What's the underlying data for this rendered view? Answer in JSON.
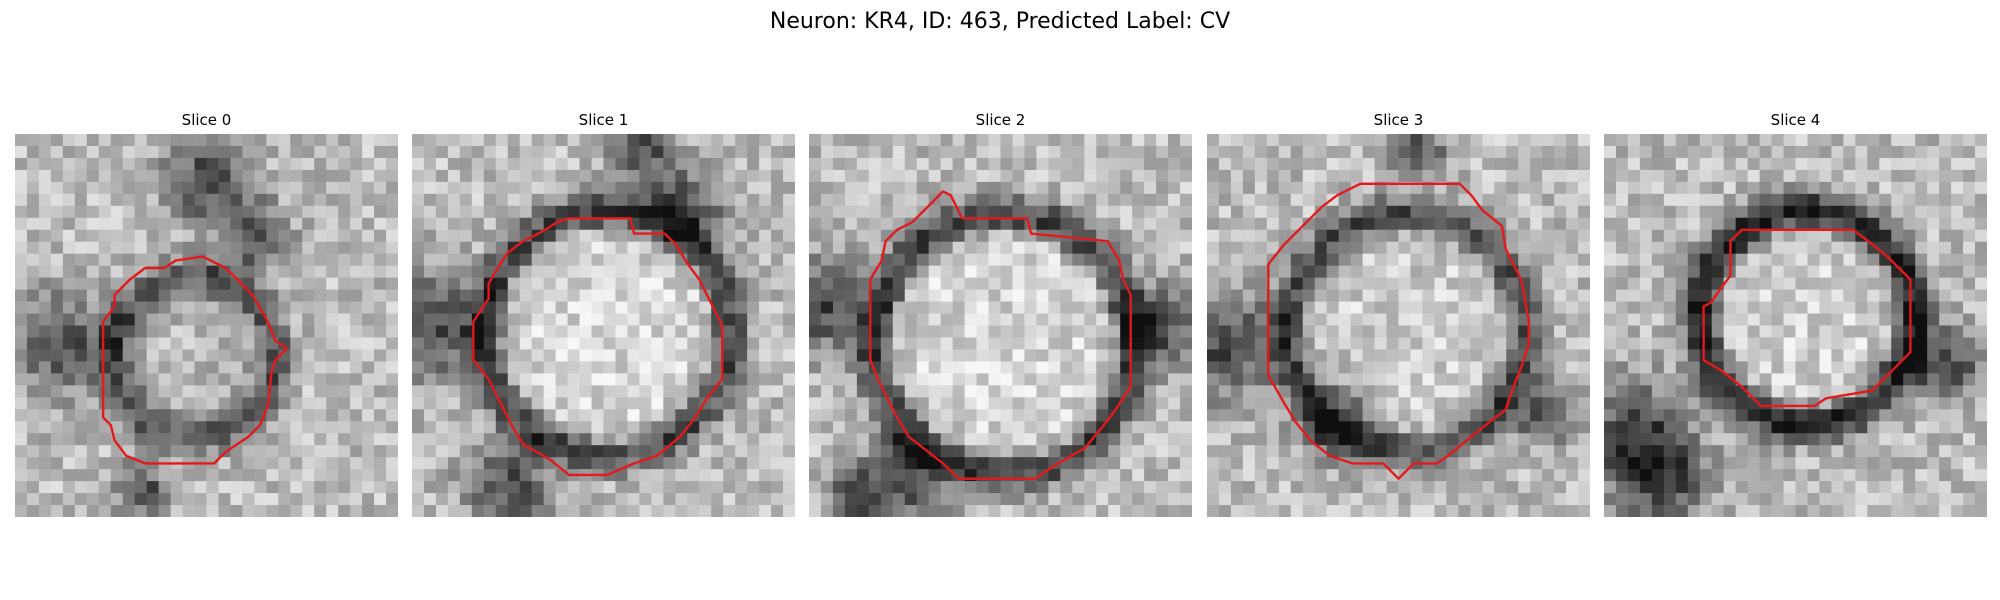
{
  "figure": {
    "title": "Neuron: KR4, ID: 463, Predicted Label: CV"
  },
  "panels": [
    {
      "title": "Slice 0",
      "contour_color": "#e31a1c",
      "image": {
        "seed": 11,
        "center": [
          0.47,
          0.58
        ],
        "ring_radius": 0.21,
        "ring_dark": 0.32,
        "interior_brightness": 0.72,
        "extra_dark": [
          [
            0.63,
            0.27,
            0.06
          ],
          [
            0.12,
            0.55,
            0.09
          ],
          [
            0.5,
            0.12,
            0.08
          ],
          [
            0.33,
            0.93,
            0.05
          ]
        ]
      },
      "contour": [
        [
          0.42,
          0.33
        ],
        [
          0.49,
          0.32
        ],
        [
          0.55,
          0.35
        ],
        [
          0.62,
          0.42
        ],
        [
          0.66,
          0.49
        ],
        [
          0.68,
          0.54
        ],
        [
          0.71,
          0.56
        ],
        [
          0.68,
          0.59
        ],
        [
          0.67,
          0.62
        ],
        [
          0.66,
          0.71
        ],
        [
          0.64,
          0.76
        ],
        [
          0.61,
          0.79
        ],
        [
          0.55,
          0.83
        ],
        [
          0.52,
          0.86
        ],
        [
          0.34,
          0.86
        ],
        [
          0.29,
          0.84
        ],
        [
          0.26,
          0.8
        ],
        [
          0.25,
          0.76
        ],
        [
          0.23,
          0.74
        ],
        [
          0.23,
          0.49
        ],
        [
          0.26,
          0.45
        ],
        [
          0.26,
          0.42
        ],
        [
          0.3,
          0.38
        ],
        [
          0.34,
          0.35
        ],
        [
          0.39,
          0.35
        ]
      ]
    },
    {
      "title": "Slice 1",
      "contour_color": "#e31a1c",
      "image": {
        "seed": 23,
        "center": [
          0.51,
          0.52
        ],
        "ring_radius": 0.32,
        "ring_dark": 0.28,
        "interior_brightness": 0.85,
        "extra_dark": [
          [
            0.05,
            0.5,
            0.1
          ],
          [
            0.72,
            0.2,
            0.07
          ],
          [
            0.6,
            0.05,
            0.06
          ],
          [
            0.25,
            0.92,
            0.08
          ]
        ]
      },
      "contour": [
        [
          0.33,
          0.26
        ],
        [
          0.38,
          0.23
        ],
        [
          0.41,
          0.22
        ],
        [
          0.57,
          0.22
        ],
        [
          0.58,
          0.26
        ],
        [
          0.66,
          0.26
        ],
        [
          0.69,
          0.29
        ],
        [
          0.72,
          0.34
        ],
        [
          0.75,
          0.38
        ],
        [
          0.78,
          0.44
        ],
        [
          0.81,
          0.5
        ],
        [
          0.81,
          0.64
        ],
        [
          0.77,
          0.69
        ],
        [
          0.74,
          0.74
        ],
        [
          0.7,
          0.79
        ],
        [
          0.64,
          0.84
        ],
        [
          0.58,
          0.86
        ],
        [
          0.51,
          0.89
        ],
        [
          0.41,
          0.89
        ],
        [
          0.36,
          0.85
        ],
        [
          0.29,
          0.81
        ],
        [
          0.26,
          0.76
        ],
        [
          0.2,
          0.64
        ],
        [
          0.16,
          0.59
        ],
        [
          0.16,
          0.49
        ],
        [
          0.2,
          0.43
        ],
        [
          0.2,
          0.39
        ],
        [
          0.23,
          0.34
        ],
        [
          0.25,
          0.31
        ],
        [
          0.29,
          0.28
        ]
      ]
    },
    {
      "title": "Slice 2",
      "contour_color": "#e31a1c",
      "image": {
        "seed": 37,
        "center": [
          0.51,
          0.55
        ],
        "ring_radius": 0.34,
        "ring_dark": 0.25,
        "interior_brightness": 0.84,
        "extra_dark": [
          [
            0.04,
            0.45,
            0.09
          ],
          [
            0.25,
            0.9,
            0.08
          ],
          [
            0.92,
            0.5,
            0.07
          ],
          [
            0.12,
            0.95,
            0.05
          ]
        ]
      },
      "contour": [
        [
          0.32,
          0.18
        ],
        [
          0.35,
          0.15
        ],
        [
          0.37,
          0.16
        ],
        [
          0.4,
          0.22
        ],
        [
          0.57,
          0.22
        ],
        [
          0.58,
          0.26
        ],
        [
          0.78,
          0.28
        ],
        [
          0.81,
          0.33
        ],
        [
          0.82,
          0.38
        ],
        [
          0.84,
          0.42
        ],
        [
          0.84,
          0.66
        ],
        [
          0.8,
          0.72
        ],
        [
          0.77,
          0.76
        ],
        [
          0.72,
          0.82
        ],
        [
          0.65,
          0.86
        ],
        [
          0.59,
          0.9
        ],
        [
          0.39,
          0.9
        ],
        [
          0.35,
          0.86
        ],
        [
          0.26,
          0.79
        ],
        [
          0.23,
          0.74
        ],
        [
          0.18,
          0.64
        ],
        [
          0.16,
          0.59
        ],
        [
          0.16,
          0.38
        ],
        [
          0.19,
          0.33
        ],
        [
          0.2,
          0.28
        ],
        [
          0.23,
          0.25
        ],
        [
          0.27,
          0.23
        ],
        [
          0.28,
          0.22
        ]
      ]
    },
    {
      "title": "Slice 3",
      "contour_color": "#e31a1c",
      "image": {
        "seed": 51,
        "center": [
          0.52,
          0.52
        ],
        "ring_radius": 0.31,
        "ring_dark": 0.3,
        "interior_brightness": 0.8,
        "extra_dark": [
          [
            0.04,
            0.55,
            0.1
          ],
          [
            0.35,
            0.75,
            0.07
          ],
          [
            0.88,
            0.72,
            0.06
          ],
          [
            0.55,
            0.05,
            0.05
          ]
        ]
      },
      "contour": [
        [
          0.34,
          0.16
        ],
        [
          0.4,
          0.13
        ],
        [
          0.66,
          0.13
        ],
        [
          0.69,
          0.16
        ],
        [
          0.72,
          0.2
        ],
        [
          0.77,
          0.24
        ],
        [
          0.78,
          0.3
        ],
        [
          0.8,
          0.34
        ],
        [
          0.82,
          0.38
        ],
        [
          0.83,
          0.43
        ],
        [
          0.84,
          0.49
        ],
        [
          0.84,
          0.55
        ],
        [
          0.82,
          0.61
        ],
        [
          0.8,
          0.66
        ],
        [
          0.78,
          0.72
        ],
        [
          0.74,
          0.75
        ],
        [
          0.69,
          0.79
        ],
        [
          0.63,
          0.84
        ],
        [
          0.6,
          0.86
        ],
        [
          0.54,
          0.86
        ],
        [
          0.5,
          0.9
        ],
        [
          0.46,
          0.86
        ],
        [
          0.38,
          0.86
        ],
        [
          0.32,
          0.84
        ],
        [
          0.27,
          0.8
        ],
        [
          0.23,
          0.75
        ],
        [
          0.2,
          0.7
        ],
        [
          0.16,
          0.63
        ],
        [
          0.16,
          0.34
        ],
        [
          0.2,
          0.29
        ],
        [
          0.24,
          0.25
        ],
        [
          0.27,
          0.22
        ],
        [
          0.3,
          0.19
        ]
      ]
    },
    {
      "title": "Slice 4",
      "contour_color": "#e31a1c",
      "image": {
        "seed": 67,
        "center": [
          0.53,
          0.48
        ],
        "ring_radius": 0.28,
        "ring_dark": 0.12,
        "interior_brightness": 0.82,
        "extra_dark": [
          [
            0.08,
            0.78,
            0.1
          ],
          [
            0.9,
            0.6,
            0.07
          ],
          [
            0.15,
            0.9,
            0.08
          ]
        ]
      },
      "contour": [
        [
          0.33,
          0.28
        ],
        [
          0.36,
          0.25
        ],
        [
          0.65,
          0.25
        ],
        [
          0.69,
          0.28
        ],
        [
          0.74,
          0.32
        ],
        [
          0.8,
          0.38
        ],
        [
          0.8,
          0.57
        ],
        [
          0.76,
          0.61
        ],
        [
          0.7,
          0.67
        ],
        [
          0.58,
          0.69
        ],
        [
          0.55,
          0.71
        ],
        [
          0.41,
          0.71
        ],
        [
          0.36,
          0.66
        ],
        [
          0.31,
          0.62
        ],
        [
          0.26,
          0.59
        ],
        [
          0.26,
          0.45
        ],
        [
          0.28,
          0.44
        ],
        [
          0.3,
          0.41
        ],
        [
          0.33,
          0.37
        ]
      ]
    }
  ]
}
